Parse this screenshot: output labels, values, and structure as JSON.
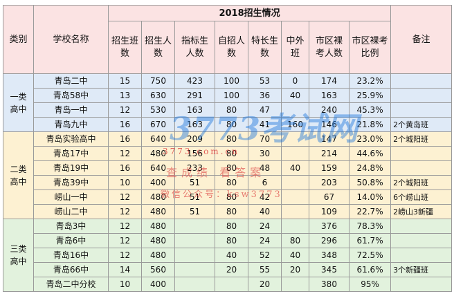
{
  "title": "2018招生情况",
  "headers": {
    "category": "类别",
    "school": "学校名称",
    "cols": [
      "招生班数",
      "招生人数",
      "指标生人数",
      "自招人数",
      "特长生数",
      "中外班",
      "市区裸考人数",
      "市区裸考比例"
    ],
    "note": "备注"
  },
  "groups": [
    {
      "name": "一类高中",
      "rows": [
        {
          "school": "青岛二中",
          "v": [
            "15",
            "750",
            "423",
            "100",
            "53",
            "0",
            "174",
            "23.2%"
          ],
          "note": ""
        },
        {
          "school": "青岛58中",
          "v": [
            "13",
            "630",
            "291",
            "100",
            "36",
            "40",
            "163",
            "25.9%"
          ],
          "note": ""
        },
        {
          "school": "青岛一中",
          "v": [
            "12",
            "530",
            "163",
            "80",
            "47",
            "",
            "240",
            "45.3%"
          ],
          "note": ""
        },
        {
          "school": "青岛九中",
          "v": [
            "16",
            "670",
            "163",
            "80",
            "41",
            "160",
            "146",
            "21.8%"
          ],
          "note": "2个黄岛班"
        }
      ]
    },
    {
      "name": "二类高中",
      "rows": [
        {
          "school": "青岛实验高中",
          "v": [
            "16",
            "640",
            "209",
            "80",
            "70",
            "",
            "147",
            "23.0%"
          ],
          "note": "2个城阳班"
        },
        {
          "school": "青岛17中",
          "v": [
            "12",
            "480",
            "156",
            "80",
            "30",
            "",
            "214",
            "44.6%"
          ],
          "note": ""
        },
        {
          "school": "青岛19中",
          "v": [
            "16",
            "640",
            "233",
            "80",
            "48",
            "40",
            "159",
            "24.8%"
          ],
          "note": ""
        },
        {
          "school": "青岛39中",
          "v": [
            "10",
            "400",
            "51",
            "80",
            "6",
            "",
            "203",
            "50.8%"
          ],
          "note": "2个城阳班"
        },
        {
          "school": "崂山一中",
          "v": [
            "12",
            "480",
            "51",
            "80",
            "42",
            "",
            "67",
            "14.0%"
          ],
          "note": "6个崂山班"
        },
        {
          "school": "崂山二中",
          "v": [
            "12",
            "480",
            "51",
            "80",
            "40",
            "",
            "109",
            "22.7%"
          ],
          "note": "2崂山3新疆"
        }
      ]
    },
    {
      "name": "三类高中",
      "rows": [
        {
          "school": "青岛3中",
          "v": [
            "12",
            "480",
            "",
            "80",
            "24",
            "",
            "376",
            "78.3%"
          ],
          "note": ""
        },
        {
          "school": "青岛6中",
          "v": [
            "12",
            "480",
            "",
            "80",
            "24",
            "80",
            "296",
            "61.7%"
          ],
          "note": ""
        },
        {
          "school": "青岛16中",
          "v": [
            "12",
            "480",
            "",
            "40",
            "52",
            "40",
            "348",
            "72.5%"
          ],
          "note": ""
        },
        {
          "school": "青岛66中",
          "v": [
            "14",
            "560",
            "",
            "20",
            "55",
            "20",
            "345",
            "61.6%"
          ],
          "note": "3个新疆班"
        },
        {
          "school": "青岛二中分校",
          "v": [
            "10",
            "400",
            "",
            "",
            "20",
            "",
            "380",
            "95%"
          ],
          "note": ""
        }
      ]
    }
  ],
  "watermark": {
    "logo": "3773考试网",
    "url": "3773.com.cn",
    "slogan": "查成绩 看答案",
    "wechat": "微信公众号：ksw3773"
  },
  "colors": {
    "header_bg": "#fbe3e3",
    "group1_bg": "#dfeaf7",
    "group2_bg": "#fdf1d2",
    "group3_bg": "#e2f2dd"
  }
}
